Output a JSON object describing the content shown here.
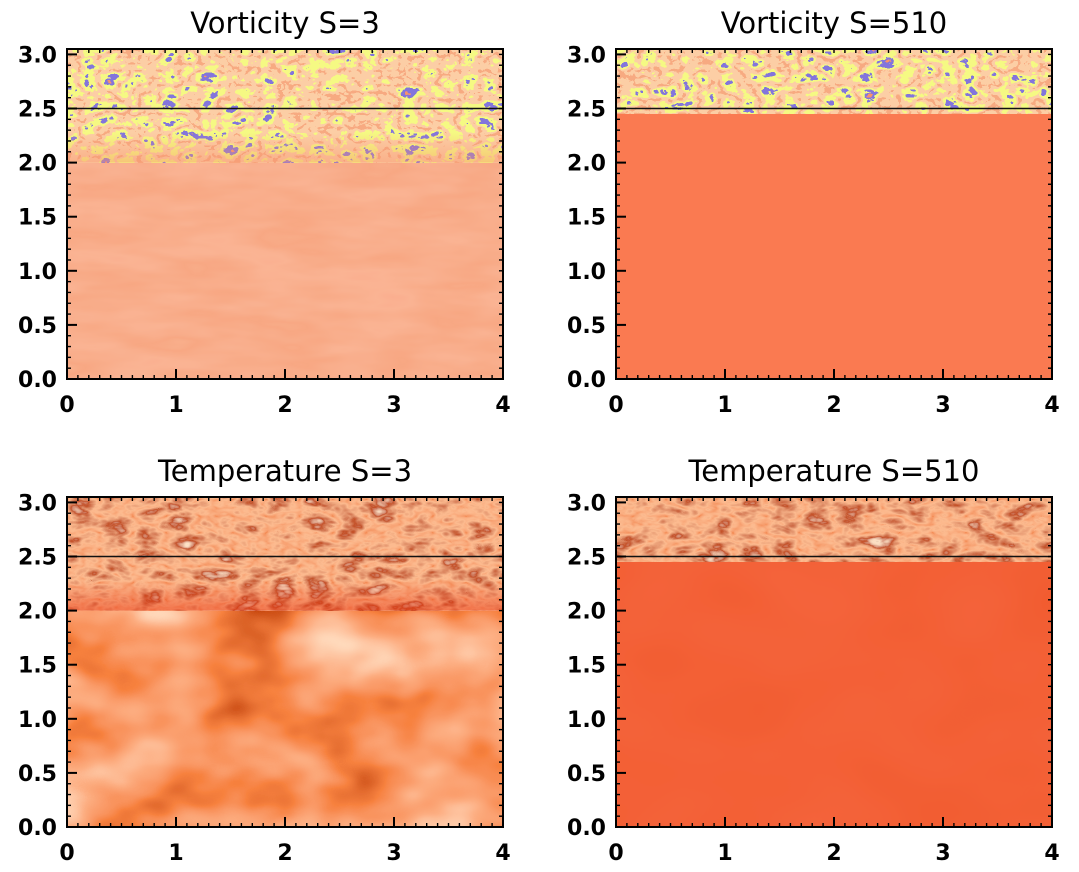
{
  "chart_data": [
    {
      "type": "heatmap",
      "title": "Vorticity S=3",
      "xlabel": "",
      "ylabel": "",
      "xlim": [
        0,
        4
      ],
      "ylim": [
        0,
        3.05
      ],
      "xticks": [
        "0",
        "1",
        "2",
        "3",
        "4"
      ],
      "yticks": [
        "0.0",
        "0.5",
        "1.0",
        "1.5",
        "2.0",
        "2.5",
        "3.0"
      ],
      "interface_line_y": 2.5,
      "turbulent_zone_bottom": 2.0,
      "colors": {
        "base": "#f7936d",
        "hot": "#f05628",
        "highlight": "#e9f23a",
        "low": "#3b2fb7"
      }
    },
    {
      "type": "heatmap",
      "title": "Vorticity S=510",
      "xlabel": "",
      "ylabel": "",
      "xlim": [
        0,
        4
      ],
      "ylim": [
        0,
        3.05
      ],
      "xticks": [
        "0",
        "1",
        "2",
        "3",
        "4"
      ],
      "yticks": [
        "0.0",
        "0.5",
        "1.0",
        "1.5",
        "2.0",
        "2.5",
        "3.0"
      ],
      "interface_line_y": 2.5,
      "turbulent_zone_bottom": 2.45,
      "colors": {
        "base": "#fa7a51",
        "hot": "#f04a1d",
        "highlight": "#e9f23a",
        "low": "#3b2fb7"
      }
    },
    {
      "type": "heatmap",
      "title": "Temperature S=3",
      "xlabel": "",
      "ylabel": "",
      "xlim": [
        0,
        4
      ],
      "ylim": [
        0,
        3.05
      ],
      "xticks": [
        "0",
        "1",
        "2",
        "3",
        "4"
      ],
      "yticks": [
        "0.0",
        "0.5",
        "1.0",
        "1.5",
        "2.0",
        "2.5",
        "3.0"
      ],
      "interface_line_y": 2.5,
      "turbulent_zone_bottom": 2.0,
      "colors": {
        "base": "#e8320c",
        "hot": "#ff8a52",
        "highlight": "#ffe4c8",
        "low": "#1a0000"
      }
    },
    {
      "type": "heatmap",
      "title": "Temperature S=510",
      "xlabel": "",
      "ylabel": "",
      "xlim": [
        0,
        4
      ],
      "ylim": [
        0,
        3.05
      ],
      "xticks": [
        "0",
        "1",
        "2",
        "3",
        "4"
      ],
      "yticks": [
        "0.0",
        "0.5",
        "1.0",
        "1.5",
        "2.0",
        "2.5",
        "3.0"
      ],
      "interface_line_y": 2.5,
      "turbulent_zone_bottom": 2.45,
      "colors": {
        "base": "#ef3412",
        "hot": "#ff7a45",
        "highlight": "#ffe0c0",
        "low": "#3a0500"
      }
    }
  ]
}
